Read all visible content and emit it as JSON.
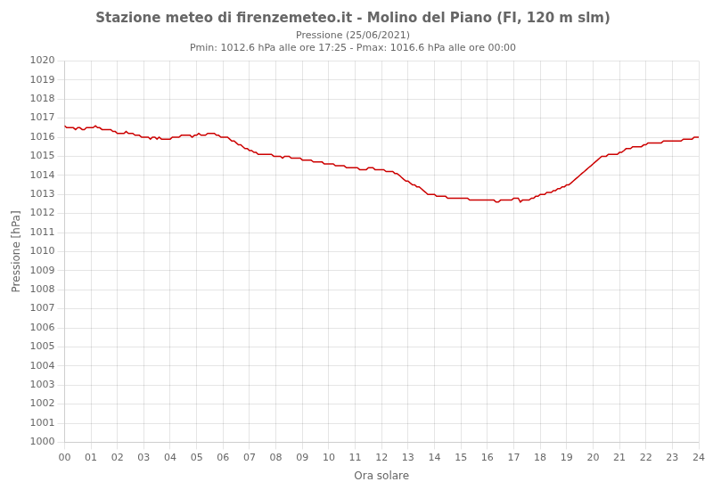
{
  "chart_data": {
    "type": "line",
    "title": "Stazione meteo di firenzemeteo.it - Molino del Piano (FI, 120 m slm)",
    "subtitle": "Pressione (25/06/2021)\nPmin: 1012.6 hPa alle ore 17:25 - Pmax: 1016.6 hPa alle ore 00:00",
    "xlabel": "Ora solare",
    "ylabel": "Pressione [hPa]",
    "color": "#cc0000",
    "grid": true,
    "xlim": [
      0,
      24
    ],
    "ylim": [
      1000,
      1020
    ],
    "xticks": [
      {
        "value": 0,
        "label": "00"
      },
      {
        "value": 1,
        "label": "01"
      },
      {
        "value": 2,
        "label": "02"
      },
      {
        "value": 3,
        "label": "03"
      },
      {
        "value": 4,
        "label": "04"
      },
      {
        "value": 5,
        "label": "05"
      },
      {
        "value": 6,
        "label": "06"
      },
      {
        "value": 7,
        "label": "07"
      },
      {
        "value": 8,
        "label": "08"
      },
      {
        "value": 9,
        "label": "09"
      },
      10,
      11,
      12,
      13,
      14,
      15,
      16,
      17,
      18,
      19,
      20,
      21,
      22,
      23,
      24
    ],
    "yticks": [
      1000,
      1001,
      1002,
      1003,
      1004,
      1005,
      1006,
      1007,
      1008,
      1009,
      1010,
      1011,
      1012,
      1013,
      1014,
      1015,
      1016,
      1017,
      1018,
      1019,
      1020
    ],
    "x": [
      0.0,
      0.08,
      0.17,
      0.25,
      0.33,
      0.42,
      0.5,
      0.58,
      0.67,
      0.75,
      0.83,
      0.92,
      1.0,
      1.08,
      1.17,
      1.25,
      1.33,
      1.42,
      1.5,
      1.58,
      1.67,
      1.75,
      1.83,
      1.92,
      2.0,
      2.08,
      2.17,
      2.25,
      2.33,
      2.42,
      2.5,
      2.58,
      2.67,
      2.75,
      2.83,
      2.92,
      3.0,
      3.08,
      3.17,
      3.25,
      3.33,
      3.42,
      3.5,
      3.58,
      3.67,
      3.75,
      3.83,
      3.92,
      4.0,
      4.08,
      4.17,
      4.25,
      4.33,
      4.42,
      4.5,
      4.58,
      4.67,
      4.75,
      4.83,
      4.92,
      5.0,
      5.08,
      5.17,
      5.25,
      5.33,
      5.42,
      5.5,
      5.58,
      5.67,
      5.75,
      5.83,
      5.92,
      6.0,
      6.08,
      6.17,
      6.25,
      6.33,
      6.42,
      6.5,
      6.58,
      6.67,
      6.75,
      6.83,
      6.92,
      7.0,
      7.08,
      7.17,
      7.25,
      7.33,
      7.42,
      7.5,
      7.58,
      7.67,
      7.75,
      7.83,
      7.92,
      8.0,
      8.08,
      8.17,
      8.25,
      8.33,
      8.42,
      8.5,
      8.58,
      8.67,
      8.75,
      8.83,
      8.92,
      9.0,
      9.08,
      9.17,
      9.25,
      9.33,
      9.42,
      9.5,
      9.58,
      9.67,
      9.75,
      9.83,
      9.92,
      10.0,
      10.08,
      10.17,
      10.25,
      10.33,
      10.42,
      10.5,
      10.58,
      10.67,
      10.75,
      10.83,
      10.92,
      11.0,
      11.08,
      11.17,
      11.25,
      11.33,
      11.42,
      11.5,
      11.58,
      11.67,
      11.75,
      11.83,
      11.92,
      12.0,
      12.08,
      12.17,
      12.25,
      12.33,
      12.42,
      12.5,
      12.58,
      12.67,
      12.75,
      12.83,
      12.92,
      13.0,
      13.08,
      13.17,
      13.25,
      13.33,
      13.42,
      13.5,
      13.58,
      13.67,
      13.75,
      13.83,
      13.92,
      14.0,
      14.08,
      14.17,
      14.25,
      14.33,
      14.42,
      14.5,
      14.58,
      14.67,
      14.75,
      14.83,
      14.92,
      15.0,
      15.08,
      15.17,
      15.25,
      15.33,
      15.42,
      15.5,
      15.58,
      15.67,
      15.75,
      15.83,
      15.92,
      16.0,
      16.08,
      16.17,
      16.25,
      16.33,
      16.42,
      16.5,
      16.58,
      16.67,
      16.75,
      16.83,
      16.92,
      17.0,
      17.08,
      17.17,
      17.25,
      17.33,
      17.42,
      17.5,
      17.58,
      17.67,
      17.75,
      17.83,
      17.92,
      18.0,
      18.08,
      18.17,
      18.25,
      18.33,
      18.42,
      18.5,
      18.58,
      18.67,
      18.75,
      18.83,
      18.92,
      19.0,
      19.08,
      19.17,
      19.25,
      19.33,
      19.42,
      19.5,
      19.58,
      19.67,
      19.75,
      19.83,
      19.92,
      20.0,
      20.08,
      20.17,
      20.25,
      20.33,
      20.42,
      20.5,
      20.58,
      20.67,
      20.75,
      20.83,
      20.92,
      21.0,
      21.08,
      21.17,
      21.25,
      21.33,
      21.42,
      21.5,
      21.58,
      21.67,
      21.75,
      21.83,
      21.92,
      22.0,
      22.08,
      22.17,
      22.25,
      22.33,
      22.42,
      22.5,
      22.58,
      22.67,
      22.75,
      22.83,
      22.92,
      23.0,
      23.08,
      23.17,
      23.25,
      23.33,
      23.42,
      23.5,
      23.58,
      23.67,
      23.75,
      23.83,
      23.92,
      24.0
    ],
    "values": [
      1016.6,
      1016.5,
      1016.5,
      1016.5,
      1016.5,
      1016.4,
      1016.5,
      1016.5,
      1016.4,
      1016.4,
      1016.5,
      1016.5,
      1016.5,
      1016.5,
      1016.6,
      1016.5,
      1016.5,
      1016.4,
      1016.4,
      1016.4,
      1016.4,
      1016.4,
      1016.3,
      1016.3,
      1016.2,
      1016.2,
      1016.2,
      1016.2,
      1016.3,
      1016.2,
      1016.2,
      1016.2,
      1016.1,
      1016.1,
      1016.1,
      1016.0,
      1016.0,
      1016.0,
      1016.0,
      1015.9,
      1016.0,
      1016.0,
      1015.9,
      1016.0,
      1015.9,
      1015.9,
      1015.9,
      1015.9,
      1015.9,
      1016.0,
      1016.0,
      1016.0,
      1016.0,
      1016.1,
      1016.1,
      1016.1,
      1016.1,
      1016.1,
      1016.0,
      1016.1,
      1016.1,
      1016.2,
      1016.1,
      1016.1,
      1016.1,
      1016.2,
      1016.2,
      1016.2,
      1016.2,
      1016.1,
      1016.1,
      1016.0,
      1016.0,
      1016.0,
      1016.0,
      1015.9,
      1015.8,
      1015.8,
      1015.7,
      1015.6,
      1015.6,
      1015.5,
      1015.4,
      1015.4,
      1015.3,
      1015.3,
      1015.2,
      1015.2,
      1015.1,
      1015.1,
      1015.1,
      1015.1,
      1015.1,
      1015.1,
      1015.1,
      1015.0,
      1015.0,
      1015.0,
      1015.0,
      1014.9,
      1015.0,
      1015.0,
      1015.0,
      1014.9,
      1014.9,
      1014.9,
      1014.9,
      1014.9,
      1014.8,
      1014.8,
      1014.8,
      1014.8,
      1014.8,
      1014.7,
      1014.7,
      1014.7,
      1014.7,
      1014.7,
      1014.6,
      1014.6,
      1014.6,
      1014.6,
      1014.6,
      1014.5,
      1014.5,
      1014.5,
      1014.5,
      1014.5,
      1014.4,
      1014.4,
      1014.4,
      1014.4,
      1014.4,
      1014.4,
      1014.3,
      1014.3,
      1014.3,
      1014.3,
      1014.4,
      1014.4,
      1014.4,
      1014.3,
      1014.3,
      1014.3,
      1014.3,
      1014.3,
      1014.2,
      1014.2,
      1014.2,
      1014.2,
      1014.1,
      1014.1,
      1014.0,
      1013.9,
      1013.8,
      1013.7,
      1013.7,
      1013.6,
      1013.5,
      1013.5,
      1013.4,
      1013.4,
      1013.3,
      1013.2,
      1013.1,
      1013.0,
      1013.0,
      1013.0,
      1013.0,
      1012.9,
      1012.9,
      1012.9,
      1012.9,
      1012.9,
      1012.8,
      1012.8,
      1012.8,
      1012.8,
      1012.8,
      1012.8,
      1012.8,
      1012.8,
      1012.8,
      1012.8,
      1012.7,
      1012.7,
      1012.7,
      1012.7,
      1012.7,
      1012.7,
      1012.7,
      1012.7,
      1012.7,
      1012.7,
      1012.7,
      1012.7,
      1012.6,
      1012.6,
      1012.7,
      1012.7,
      1012.7,
      1012.7,
      1012.7,
      1012.7,
      1012.8,
      1012.8,
      1012.8,
      1012.6,
      1012.7,
      1012.7,
      1012.7,
      1012.7,
      1012.8,
      1012.8,
      1012.9,
      1012.9,
      1013.0,
      1013.0,
      1013.0,
      1013.1,
      1013.1,
      1013.1,
      1013.2,
      1013.2,
      1013.3,
      1013.3,
      1013.4,
      1013.4,
      1013.5,
      1013.5,
      1013.6,
      1013.7,
      1013.8,
      1013.9,
      1014.0,
      1014.1,
      1014.2,
      1014.3,
      1014.4,
      1014.5,
      1014.6,
      1014.7,
      1014.8,
      1014.9,
      1015.0,
      1015.0,
      1015.0,
      1015.1,
      1015.1,
      1015.1,
      1015.1,
      1015.1,
      1015.2,
      1015.2,
      1015.3,
      1015.4,
      1015.4,
      1015.4,
      1015.5,
      1015.5,
      1015.5,
      1015.5,
      1015.5,
      1015.6,
      1015.6,
      1015.7,
      1015.7,
      1015.7,
      1015.7,
      1015.7,
      1015.7,
      1015.7,
      1015.8,
      1015.8,
      1015.8,
      1015.8,
      1015.8,
      1015.8,
      1015.8,
      1015.8,
      1015.8,
      1015.9,
      1015.9,
      1015.9,
      1015.9,
      1015.9,
      1016.0,
      1016.0,
      1016.0
    ]
  }
}
